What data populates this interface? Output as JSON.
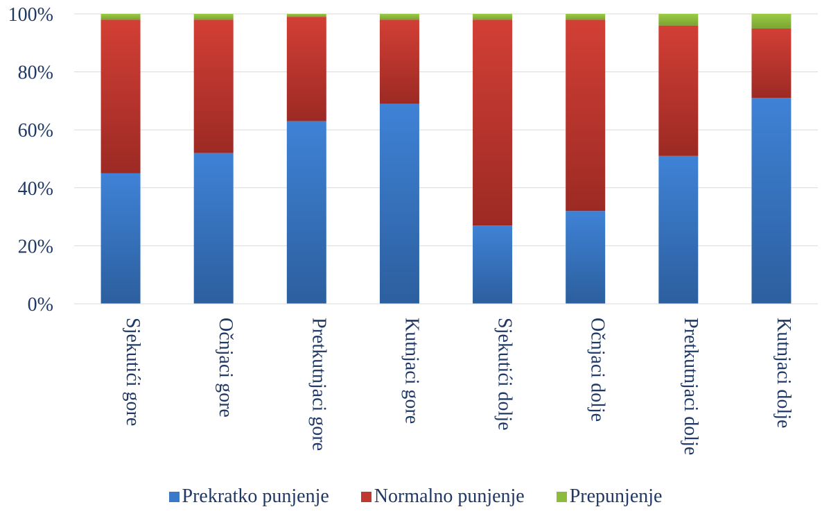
{
  "chart_data": {
    "type": "bar",
    "stacked": true,
    "percent": true,
    "categories": [
      "Sjekutići gore",
      "Očnjaci gore",
      "Pretkutnjaci gore",
      "Kutnjaci gore",
      "Sjekutići dolje",
      "Očnjaci dolje",
      "Pretkutnjaci dolje",
      "Kutnjaci dolje"
    ],
    "series": [
      {
        "name": "Prekratko punjenje",
        "values": [
          45,
          52,
          63,
          69,
          27,
          32,
          51,
          71
        ],
        "color": "#3a78c8"
      },
      {
        "name": "Normalno punjenje",
        "values": [
          53,
          46,
          36,
          29,
          71,
          66,
          45,
          24
        ],
        "color": "#c0392f"
      },
      {
        "name": "Prepunjenje",
        "values": [
          2,
          2,
          1,
          2,
          2,
          2,
          4,
          5
        ],
        "color": "#8dbb3b"
      }
    ],
    "ylim": [
      0,
      100
    ],
    "yticks": [
      "0%",
      "20%",
      "40%",
      "60%",
      "80%",
      "100%"
    ],
    "grid": true,
    "legend_position": "bottom"
  }
}
